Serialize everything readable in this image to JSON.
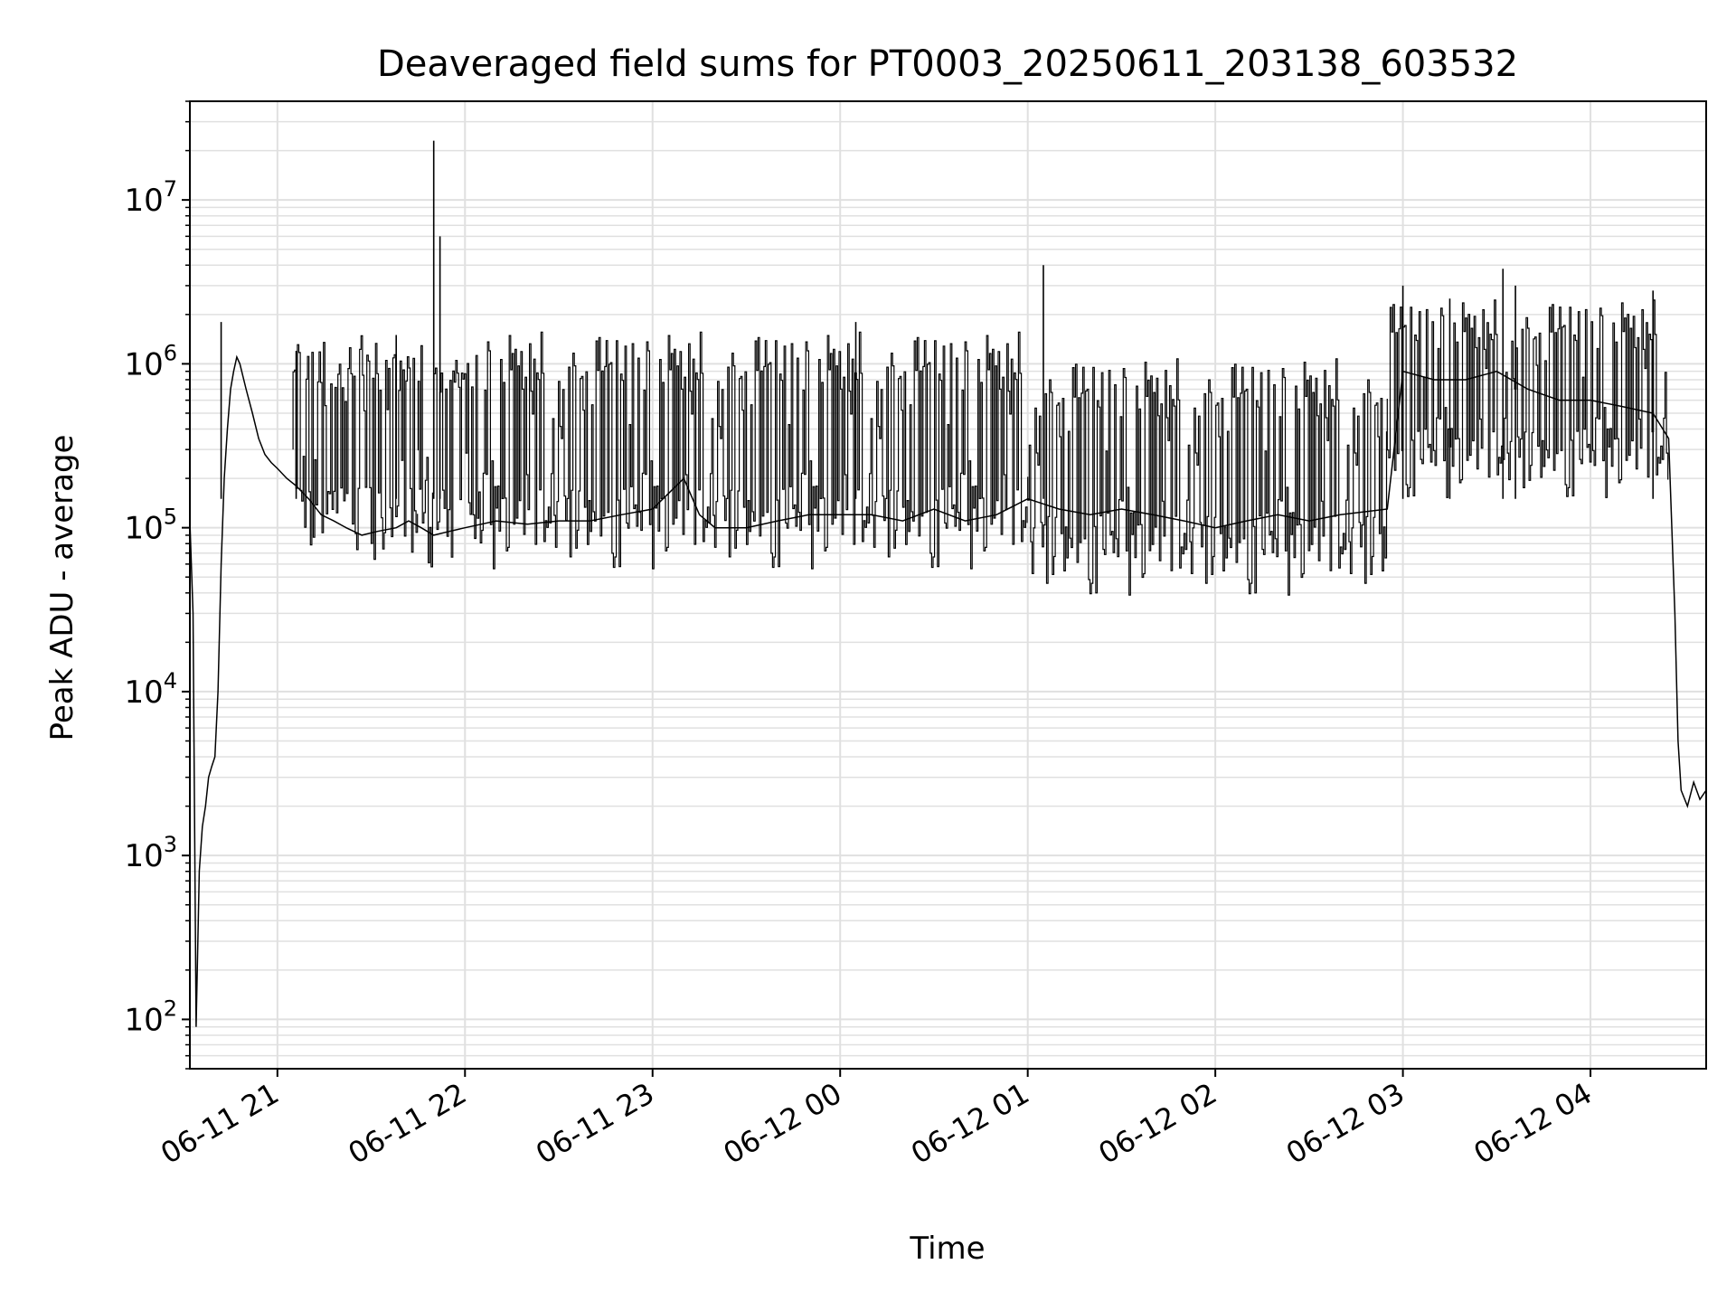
{
  "chart_data": {
    "type": "line",
    "title": "Deaveraged field sums for PT0003_20250611_203138_603532",
    "xlabel": "Time",
    "ylabel": "Peak ADU - average",
    "yscale": "log",
    "ylim": [
      50,
      40000000
    ],
    "xlim": [
      "2025-06-11 20:32",
      "2025-06-12 04:37"
    ],
    "x_tick_labels": [
      "06-11 21",
      "06-11 22",
      "06-11 23",
      "06-12 00",
      "06-12 01",
      "06-12 02",
      "06-12 03",
      "06-12 04"
    ],
    "y_tick_labels": [
      {
        "base": "10",
        "exp": "2"
      },
      {
        "base": "10",
        "exp": "3"
      },
      {
        "base": "10",
        "exp": "4"
      },
      {
        "base": "10",
        "exp": "5"
      },
      {
        "base": "10",
        "exp": "6"
      },
      {
        "base": "10",
        "exp": "7"
      }
    ],
    "grid": true,
    "line_color": "#000000",
    "grid_color": "#e0e0e0",
    "series": [
      {
        "points": [
          [
            "2025-06-11 20:32",
            110000
          ],
          [
            "2025-06-11 20:33",
            30000
          ],
          [
            "2025-06-11 20:34",
            90
          ],
          [
            "2025-06-11 20:35",
            800
          ],
          [
            "2025-06-11 20:36",
            1500
          ],
          [
            "2025-06-11 20:37",
            2000
          ],
          [
            "2025-06-11 20:38",
            3000
          ],
          [
            "2025-06-11 20:39",
            3500
          ],
          [
            "2025-06-11 20:40",
            4000
          ],
          [
            "2025-06-11 20:41",
            10000
          ],
          [
            "2025-06-11 20:42",
            60000
          ],
          [
            "2025-06-11 20:43",
            200000
          ],
          [
            "2025-06-11 20:44",
            400000
          ],
          [
            "2025-06-11 20:45",
            700000
          ],
          [
            "2025-06-11 20:46",
            900000
          ],
          [
            "2025-06-11 20:47",
            1100000
          ],
          [
            "2025-06-11 20:48",
            1000000
          ],
          [
            "2025-06-11 20:50",
            700000
          ],
          [
            "2025-06-11 20:52",
            500000
          ],
          [
            "2025-06-11 20:54",
            350000
          ],
          [
            "2025-06-11 20:56",
            280000
          ],
          [
            "2025-06-11 20:58",
            250000
          ],
          [
            "2025-06-11 21:00",
            230000
          ],
          [
            "2025-06-11 21:03",
            200000
          ],
          [
            "2025-06-11 21:06",
            180000
          ],
          [
            "2025-06-11 21:10",
            150000
          ],
          [
            "2025-06-11 21:14",
            120000
          ],
          [
            "2025-06-11 21:18",
            110000
          ],
          [
            "2025-06-11 21:22",
            100000
          ],
          [
            "2025-06-11 21:27",
            90000
          ],
          [
            "2025-06-11 21:32",
            95000
          ],
          [
            "2025-06-11 21:38",
            100000
          ],
          [
            "2025-06-11 21:42",
            110000
          ],
          [
            "2025-06-11 21:46",
            100000
          ],
          [
            "2025-06-11 21:50",
            90000
          ],
          [
            "2025-06-11 21:55",
            95000
          ],
          [
            "2025-06-11 22:00",
            100000
          ],
          [
            "2025-06-11 22:10",
            110000
          ],
          [
            "2025-06-11 22:20",
            105000
          ],
          [
            "2025-06-11 22:30",
            110000
          ],
          [
            "2025-06-11 22:40",
            110000
          ],
          [
            "2025-06-11 22:50",
            120000
          ],
          [
            "2025-06-11 23:00",
            130000
          ],
          [
            "2025-06-11 23:10",
            200000
          ],
          [
            "2025-06-11 23:15",
            120000
          ],
          [
            "2025-06-11 23:20",
            100000
          ],
          [
            "2025-06-11 23:30",
            100000
          ],
          [
            "2025-06-11 23:40",
            110000
          ],
          [
            "2025-06-11 23:50",
            120000
          ],
          [
            "2025-06-12 00:00",
            120000
          ],
          [
            "2025-06-12 00:10",
            120000
          ],
          [
            "2025-06-12 00:20",
            110000
          ],
          [
            "2025-06-12 00:30",
            130000
          ],
          [
            "2025-06-12 00:40",
            110000
          ],
          [
            "2025-06-12 00:50",
            120000
          ],
          [
            "2025-06-12 01:00",
            150000
          ],
          [
            "2025-06-12 01:10",
            130000
          ],
          [
            "2025-06-12 01:20",
            120000
          ],
          [
            "2025-06-12 01:30",
            130000
          ],
          [
            "2025-06-12 01:40",
            120000
          ],
          [
            "2025-06-12 01:50",
            110000
          ],
          [
            "2025-06-12 02:00",
            100000
          ],
          [
            "2025-06-12 02:10",
            110000
          ],
          [
            "2025-06-12 02:20",
            120000
          ],
          [
            "2025-06-12 02:30",
            110000
          ],
          [
            "2025-06-12 02:40",
            120000
          ],
          [
            "2025-06-12 02:55",
            130000
          ],
          [
            "2025-06-12 03:00",
            900000
          ],
          [
            "2025-06-12 03:10",
            800000
          ],
          [
            "2025-06-12 03:20",
            800000
          ],
          [
            "2025-06-12 03:30",
            900000
          ],
          [
            "2025-06-12 03:40",
            700000
          ],
          [
            "2025-06-12 03:50",
            600000
          ],
          [
            "2025-06-12 04:00",
            600000
          ],
          [
            "2025-06-12 04:10",
            550000
          ],
          [
            "2025-06-12 04:20",
            500000
          ],
          [
            "2025-06-12 04:25",
            350000
          ],
          [
            "2025-06-12 04:27",
            30000
          ],
          [
            "2025-06-12 04:28",
            5000
          ],
          [
            "2025-06-12 04:29",
            2500
          ],
          [
            "2025-06-12 04:31",
            2000
          ],
          [
            "2025-06-12 04:33",
            2800
          ],
          [
            "2025-06-12 04:35",
            2200
          ],
          [
            "2025-06-12 04:37",
            2500
          ]
        ]
      }
    ],
    "bands": [
      {
        "start": "2025-06-11 21:05",
        "end": "2025-06-11 21:45",
        "low": 60000,
        "high": 1500000
      },
      {
        "start": "2025-06-11 21:45",
        "end": "2025-06-12 01:00",
        "low": 55000,
        "high": 1600000
      },
      {
        "start": "2025-06-12 01:00",
        "end": "2025-06-12 02:55",
        "low": 38000,
        "high": 1100000
      },
      {
        "start": "2025-06-12 02:55",
        "end": "2025-06-12 04:25",
        "low": 150000,
        "high": 2500000
      }
    ],
    "spikes": [
      [
        "2025-06-11 20:42",
        1800000
      ],
      [
        "2025-06-11 21:06",
        1200000
      ],
      [
        "2025-06-11 21:38",
        1500000
      ],
      [
        "2025-06-11 21:50",
        23000000
      ],
      [
        "2025-06-11 21:52",
        6000000
      ],
      [
        "2025-06-12 00:05",
        1800000
      ],
      [
        "2025-06-12 01:05",
        4000000
      ],
      [
        "2025-06-12 03:00",
        3000000
      ],
      [
        "2025-06-12 03:15",
        2500000
      ],
      [
        "2025-06-12 03:32",
        3800000
      ],
      [
        "2025-06-12 03:36",
        3000000
      ],
      [
        "2025-06-12 04:20",
        2800000
      ]
    ]
  }
}
